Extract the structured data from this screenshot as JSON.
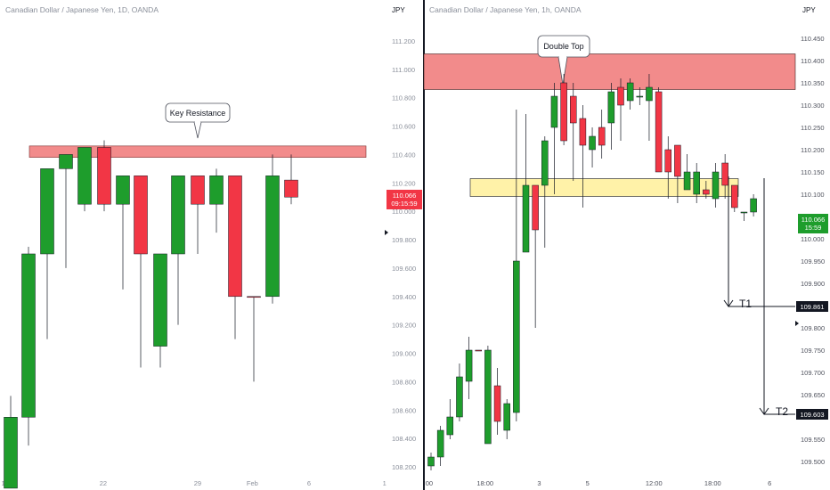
{
  "chart_data": [
    {
      "type": "candlestick",
      "title": "Canadian Dollar / Japanese Yen, 1D, OANDA",
      "currency": "JPY",
      "ylim": [
        108.1,
        111.35
      ],
      "y_ticks": [
        "111.200",
        "111.000",
        "110.800",
        "110.600",
        "110.400",
        "110.200",
        "110.000",
        "109.800",
        "109.600",
        "109.400",
        "109.200",
        "109.000",
        "108.800",
        "108.600",
        "108.400",
        "108.200"
      ],
      "x_ticks": [
        {
          "label": "15",
          "i": -0.3
        },
        {
          "label": "22",
          "i": 4.9
        },
        {
          "label": "29",
          "i": 9.9
        },
        {
          "label": "Feb",
          "i": 12.8
        },
        {
          "label": "6",
          "i": 15.8
        },
        {
          "label": "1",
          "i": 19.8
        }
      ],
      "candles": [
        [
          108.55,
          108.7,
          108.15,
          108.05
        ],
        [
          108.7,
          109.7,
          108.55,
          108.35
        ],
        [
          109.7,
          110.3,
          109.1,
          108.95
        ],
        [
          110.3,
          110.4,
          109.7,
          109.38
        ],
        [
          110.4,
          110.45,
          110.0,
          109.55
        ],
        [
          110.35,
          110.45,
          110.05,
          110.0
        ],
        [
          110.05,
          110.8,
          109.55,
          109.1
        ],
        [
          110.25,
          110.4,
          110.0,
          109.7
        ],
        [
          110.3,
          110.25,
          109.05,
          108.9
        ],
        [
          109.6,
          109.55,
          109.05,
          108.95
        ],
        [
          110.0,
          110.25,
          109.6,
          109.45
        ],
        [
          110.0,
          110.25,
          110.15,
          109.9
        ],
        [
          110.0,
          110.3,
          110.2,
          109.9
        ],
        [
          110.2,
          110.25,
          109.4,
          109.05
        ],
        [
          109.4,
          109.4,
          109.4,
          108.8
        ],
        [
          109.4,
          110.4,
          110.2,
          109.35
        ],
        [
          110.1,
          110.45,
          110.2,
          110.05
        ]
      ],
      "candle_format": "[open, high, low, close] scaled mock — see values",
      "candle_values_note": "",
      "resistance_zone": {
        "low": 110.38,
        "high": 110.46
      },
      "callout": "Key Resistance",
      "current_price": "110.066",
      "countdown": "09:15:59",
      "colors": {
        "up": "#1e9d2c",
        "down": "#f23645",
        "zone": "#f28b8b",
        "badge": "#f23645"
      }
    },
    {
      "type": "candlestick",
      "title": "Canadian Dollar / Japanese Yen, 1h, OANDA",
      "currency": "JPY",
      "ylim": [
        109.48,
        110.48
      ],
      "y_ticks": [
        "110.450",
        "110.400",
        "110.350",
        "110.300",
        "110.250",
        "110.200",
        "110.150",
        "110.100",
        "110.050",
        "110.000",
        "109.950",
        "109.900",
        "109.850",
        "109.800",
        "109.750",
        "109.700",
        "109.650",
        "109.600",
        "109.550",
        "109.500"
      ],
      "x_ticks": [
        {
          "label": "00",
          "i": -0.2
        },
        {
          "label": "18:00",
          "i": 5.7
        },
        {
          "label": "3",
          "i": 11.4
        },
        {
          "label": "5",
          "i": 16.5
        },
        {
          "label": "12:00",
          "i": 23.5
        },
        {
          "label": "18:00",
          "i": 29.7
        },
        {
          "label": "6",
          "i": 35.7
        }
      ],
      "candles": [],
      "resistance_zone": {
        "low": 110.335,
        "high": 110.415
      },
      "support_zone": {
        "low": 110.095,
        "high": 110.135
      },
      "callout": "Double Top",
      "current_price": "110.066",
      "countdown": "15:59",
      "targets": [
        {
          "label": "T1",
          "price": "109.861"
        },
        {
          "label": "T2",
          "price": "109.603"
        }
      ],
      "colors": {
        "up": "#1e9d2c",
        "down": "#f23645",
        "zone": "#f28b8b",
        "support": "#fff2a8",
        "badge": "#1e9d2c",
        "target_badge": "#131722"
      }
    }
  ]
}
